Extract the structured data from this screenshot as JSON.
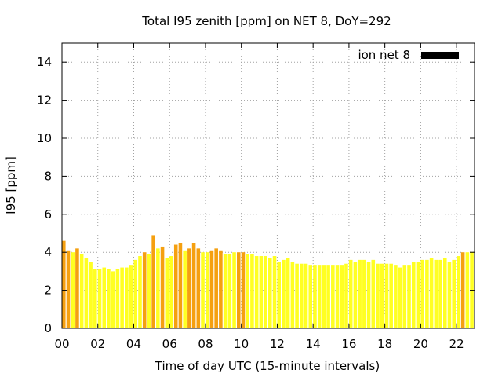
{
  "chart_data": {
    "type": "bar",
    "title": "Total I95 zenith [ppm] on NET 8, DoY=292",
    "xlabel": "Time of day UTC (15-minute intervals)",
    "ylabel": "I95 [ppm]",
    "xlim": [
      0,
      23
    ],
    "ylim": [
      0,
      15
    ],
    "x_ticks": [
      "00",
      "02",
      "04",
      "06",
      "08",
      "10",
      "12",
      "14",
      "16",
      "18",
      "20",
      "22"
    ],
    "x_tick_values": [
      0,
      2,
      4,
      6,
      8,
      10,
      12,
      14,
      16,
      18,
      20,
      22
    ],
    "y_ticks": [
      "0",
      "2",
      "4",
      "6",
      "8",
      "10",
      "12",
      "14"
    ],
    "y_tick_values": [
      0,
      2,
      4,
      6,
      8,
      10,
      12,
      14
    ],
    "grid": true,
    "legend": {
      "label": "ion net 8",
      "color": "#000000",
      "placement": "top-right"
    },
    "colors": {
      "yellow": "#ffff22",
      "orange": "#f5a010"
    },
    "interval_hours": 0.25,
    "values": [
      4.6,
      4.1,
      4.0,
      4.2,
      3.9,
      3.7,
      3.5,
      3.1,
      3.1,
      3.2,
      3.1,
      3.0,
      3.1,
      3.2,
      3.2,
      3.3,
      3.6,
      3.8,
      4.0,
      3.9,
      4.9,
      4.2,
      4.3,
      3.7,
      3.8,
      4.4,
      4.5,
      4.1,
      4.2,
      4.5,
      4.2,
      4.0,
      4.0,
      4.1,
      4.2,
      4.1,
      3.9,
      3.9,
      4.0,
      4.0,
      4.0,
      3.9,
      3.9,
      3.8,
      3.8,
      3.8,
      3.7,
      3.8,
      3.5,
      3.6,
      3.7,
      3.5,
      3.4,
      3.4,
      3.4,
      3.3,
      3.3,
      3.3,
      3.3,
      3.3,
      3.3,
      3.3,
      3.3,
      3.4,
      3.6,
      3.5,
      3.6,
      3.6,
      3.5,
      3.6,
      3.4,
      3.4,
      3.4,
      3.4,
      3.3,
      3.2,
      3.3,
      3.3,
      3.5,
      3.5,
      3.6,
      3.6,
      3.7,
      3.6,
      3.6,
      3.7,
      3.5,
      3.6,
      3.8,
      4.0,
      4.0,
      4.0
    ],
    "bar_colors": [
      "orange",
      "orange",
      "yellow",
      "orange",
      "yellow",
      "yellow",
      "yellow",
      "yellow",
      "yellow",
      "yellow",
      "yellow",
      "yellow",
      "yellow",
      "yellow",
      "yellow",
      "yellow",
      "yellow",
      "yellow",
      "orange",
      "yellow",
      "orange",
      "yellow",
      "orange",
      "yellow",
      "yellow",
      "orange",
      "orange",
      "yellow",
      "orange",
      "orange",
      "orange",
      "yellow",
      "yellow",
      "orange",
      "orange",
      "orange",
      "yellow",
      "yellow",
      "yellow",
      "orange",
      "orange",
      "yellow",
      "yellow",
      "yellow",
      "yellow",
      "yellow",
      "yellow",
      "yellow",
      "yellow",
      "yellow",
      "yellow",
      "yellow",
      "yellow",
      "yellow",
      "yellow",
      "yellow",
      "yellow",
      "yellow",
      "yellow",
      "yellow",
      "yellow",
      "yellow",
      "yellow",
      "yellow",
      "yellow",
      "yellow",
      "yellow",
      "yellow",
      "yellow",
      "yellow",
      "yellow",
      "yellow",
      "yellow",
      "yellow",
      "yellow",
      "yellow",
      "yellow",
      "yellow",
      "yellow",
      "yellow",
      "yellow",
      "yellow",
      "yellow",
      "yellow",
      "yellow",
      "yellow",
      "yellow",
      "yellow",
      "yellow",
      "orange",
      "yellow",
      "yellow"
    ]
  }
}
